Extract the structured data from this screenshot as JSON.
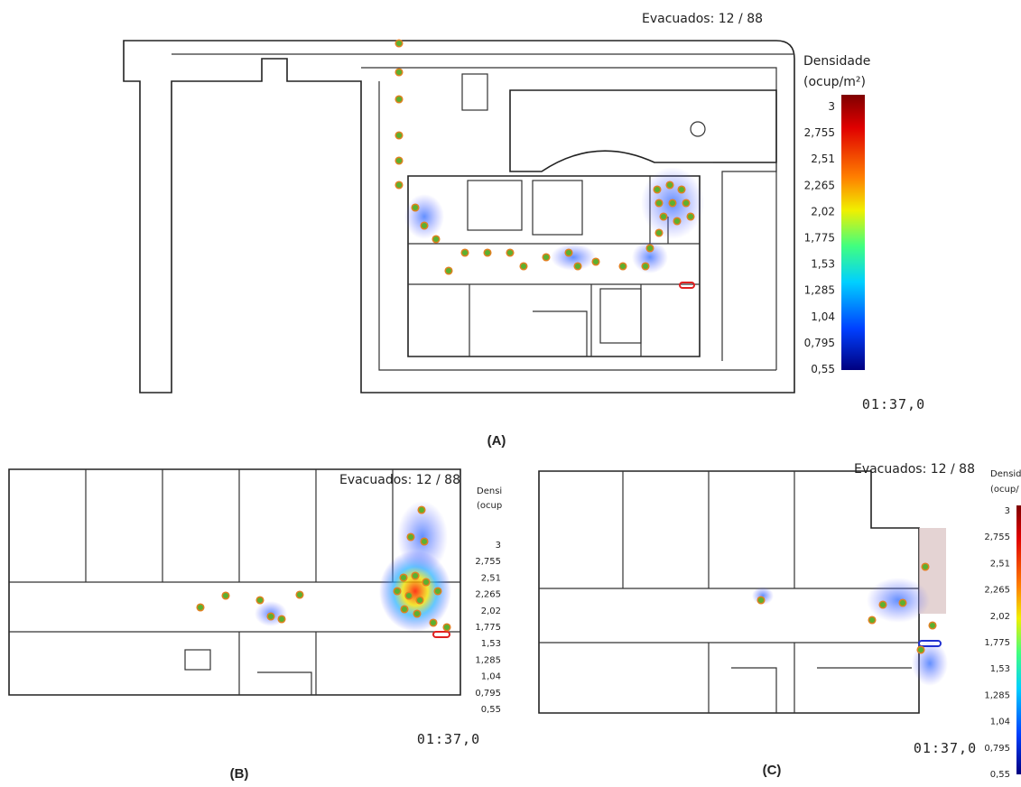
{
  "panels": [
    {
      "label": "(A)",
      "evacuated": "Evacuados: 12 / 88",
      "legend_title": [
        "Densidade",
        "(ocup/m²)"
      ],
      "legend_ticks": [
        "3",
        "2,755",
        "2,51",
        "2,265",
        "2,02",
        "1,775",
        "1,53",
        "1,285",
        "1,04",
        "0,795",
        "0,55"
      ],
      "timer": "01:37,0"
    },
    {
      "label": "(B)",
      "evacuated": "Evacuados: 12 / 88",
      "legend_title": [
        "Densi",
        "(ocup"
      ],
      "legend_ticks": [
        "3",
        "2,755",
        "2,51",
        "2,265",
        "2,02",
        "1,775",
        "1,53",
        "1,285",
        "1,04",
        "0,795",
        "0,55"
      ],
      "timer": "01:37,0"
    },
    {
      "label": "(C)",
      "evacuated": "Evacuados: 12 / 88",
      "legend_title": [
        "Densid",
        "(ocup/"
      ],
      "legend_ticks": [
        "3",
        "2,755",
        "2,51",
        "2,265",
        "2,02",
        "1,775",
        "1,53",
        "1,285",
        "1,04",
        "0,795",
        "0,55"
      ],
      "timer": "01:37,0"
    }
  ]
}
